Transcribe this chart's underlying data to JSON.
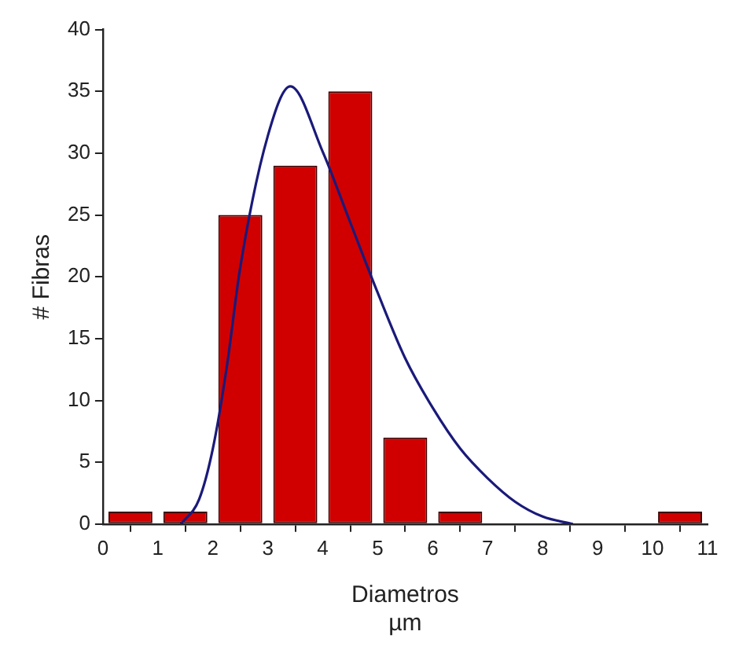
{
  "chart_data": {
    "type": "histogram",
    "xlabel": "Diametros\nµm",
    "ylabel": "# Fibras",
    "bins": [
      0,
      1,
      2,
      3,
      4,
      5,
      6,
      7,
      8,
      9,
      10,
      11
    ],
    "values": [
      1,
      1,
      25,
      29,
      35,
      7,
      1,
      0,
      0,
      0,
      1
    ],
    "color": "#d00000",
    "series": [
      {
        "type": "line",
        "color": "#1a1a7a",
        "x": [
          1.42,
          1.75,
          2,
          2.25,
          2.5,
          3,
          3.41,
          4,
          4.5,
          5,
          5.5,
          6,
          6.5,
          7,
          7.5,
          8,
          8.55
        ],
        "values": [
          0,
          2,
          6.1,
          12.6,
          20.8,
          31.4,
          35.4,
          30.1,
          24.4,
          18.7,
          13.4,
          9.4,
          6.1,
          3.7,
          1.8,
          0.6,
          0
        ]
      }
    ],
    "xlim": [
      0,
      11
    ],
    "xticks": [
      0,
      1,
      2,
      3,
      4,
      5,
      6,
      7,
      8,
      9,
      10,
      11
    ],
    "ylim": [
      0,
      40
    ],
    "yticks": [
      0,
      5,
      10,
      15,
      20,
      25,
      30,
      35,
      40
    ],
    "grid": false,
    "legend": false,
    "marker": "none"
  }
}
